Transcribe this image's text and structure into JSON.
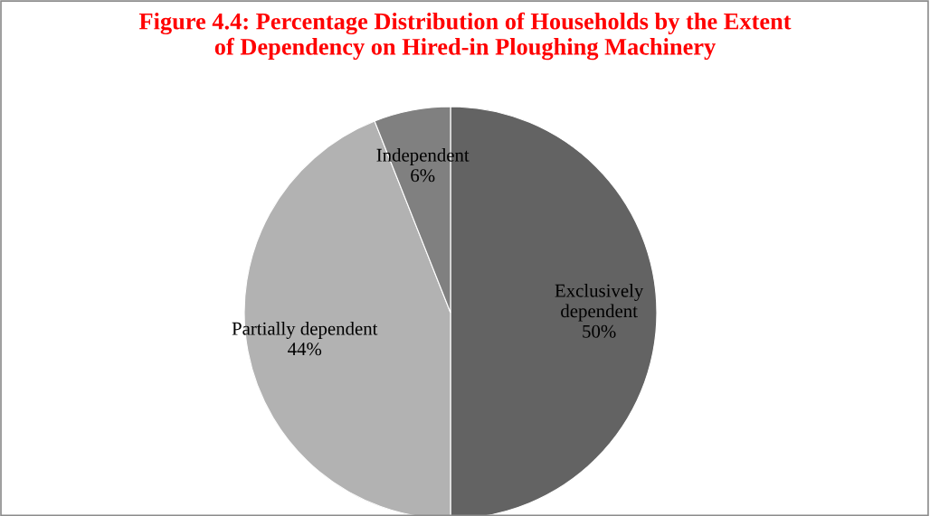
{
  "chart_data": {
    "type": "pie",
    "title": "Figure 4.4: Percentage Distribution of Households by the Extent\nof Dependency on Hired-in Ploughing Machinery",
    "categories": [
      "Exclusively\ndependent",
      "Partially dependent",
      "Independent"
    ],
    "values": [
      50,
      44,
      6
    ],
    "colors": [
      "#636363",
      "#b2b2b2",
      "#808080"
    ],
    "value_labels": [
      "50%",
      "44%",
      "6%"
    ]
  }
}
